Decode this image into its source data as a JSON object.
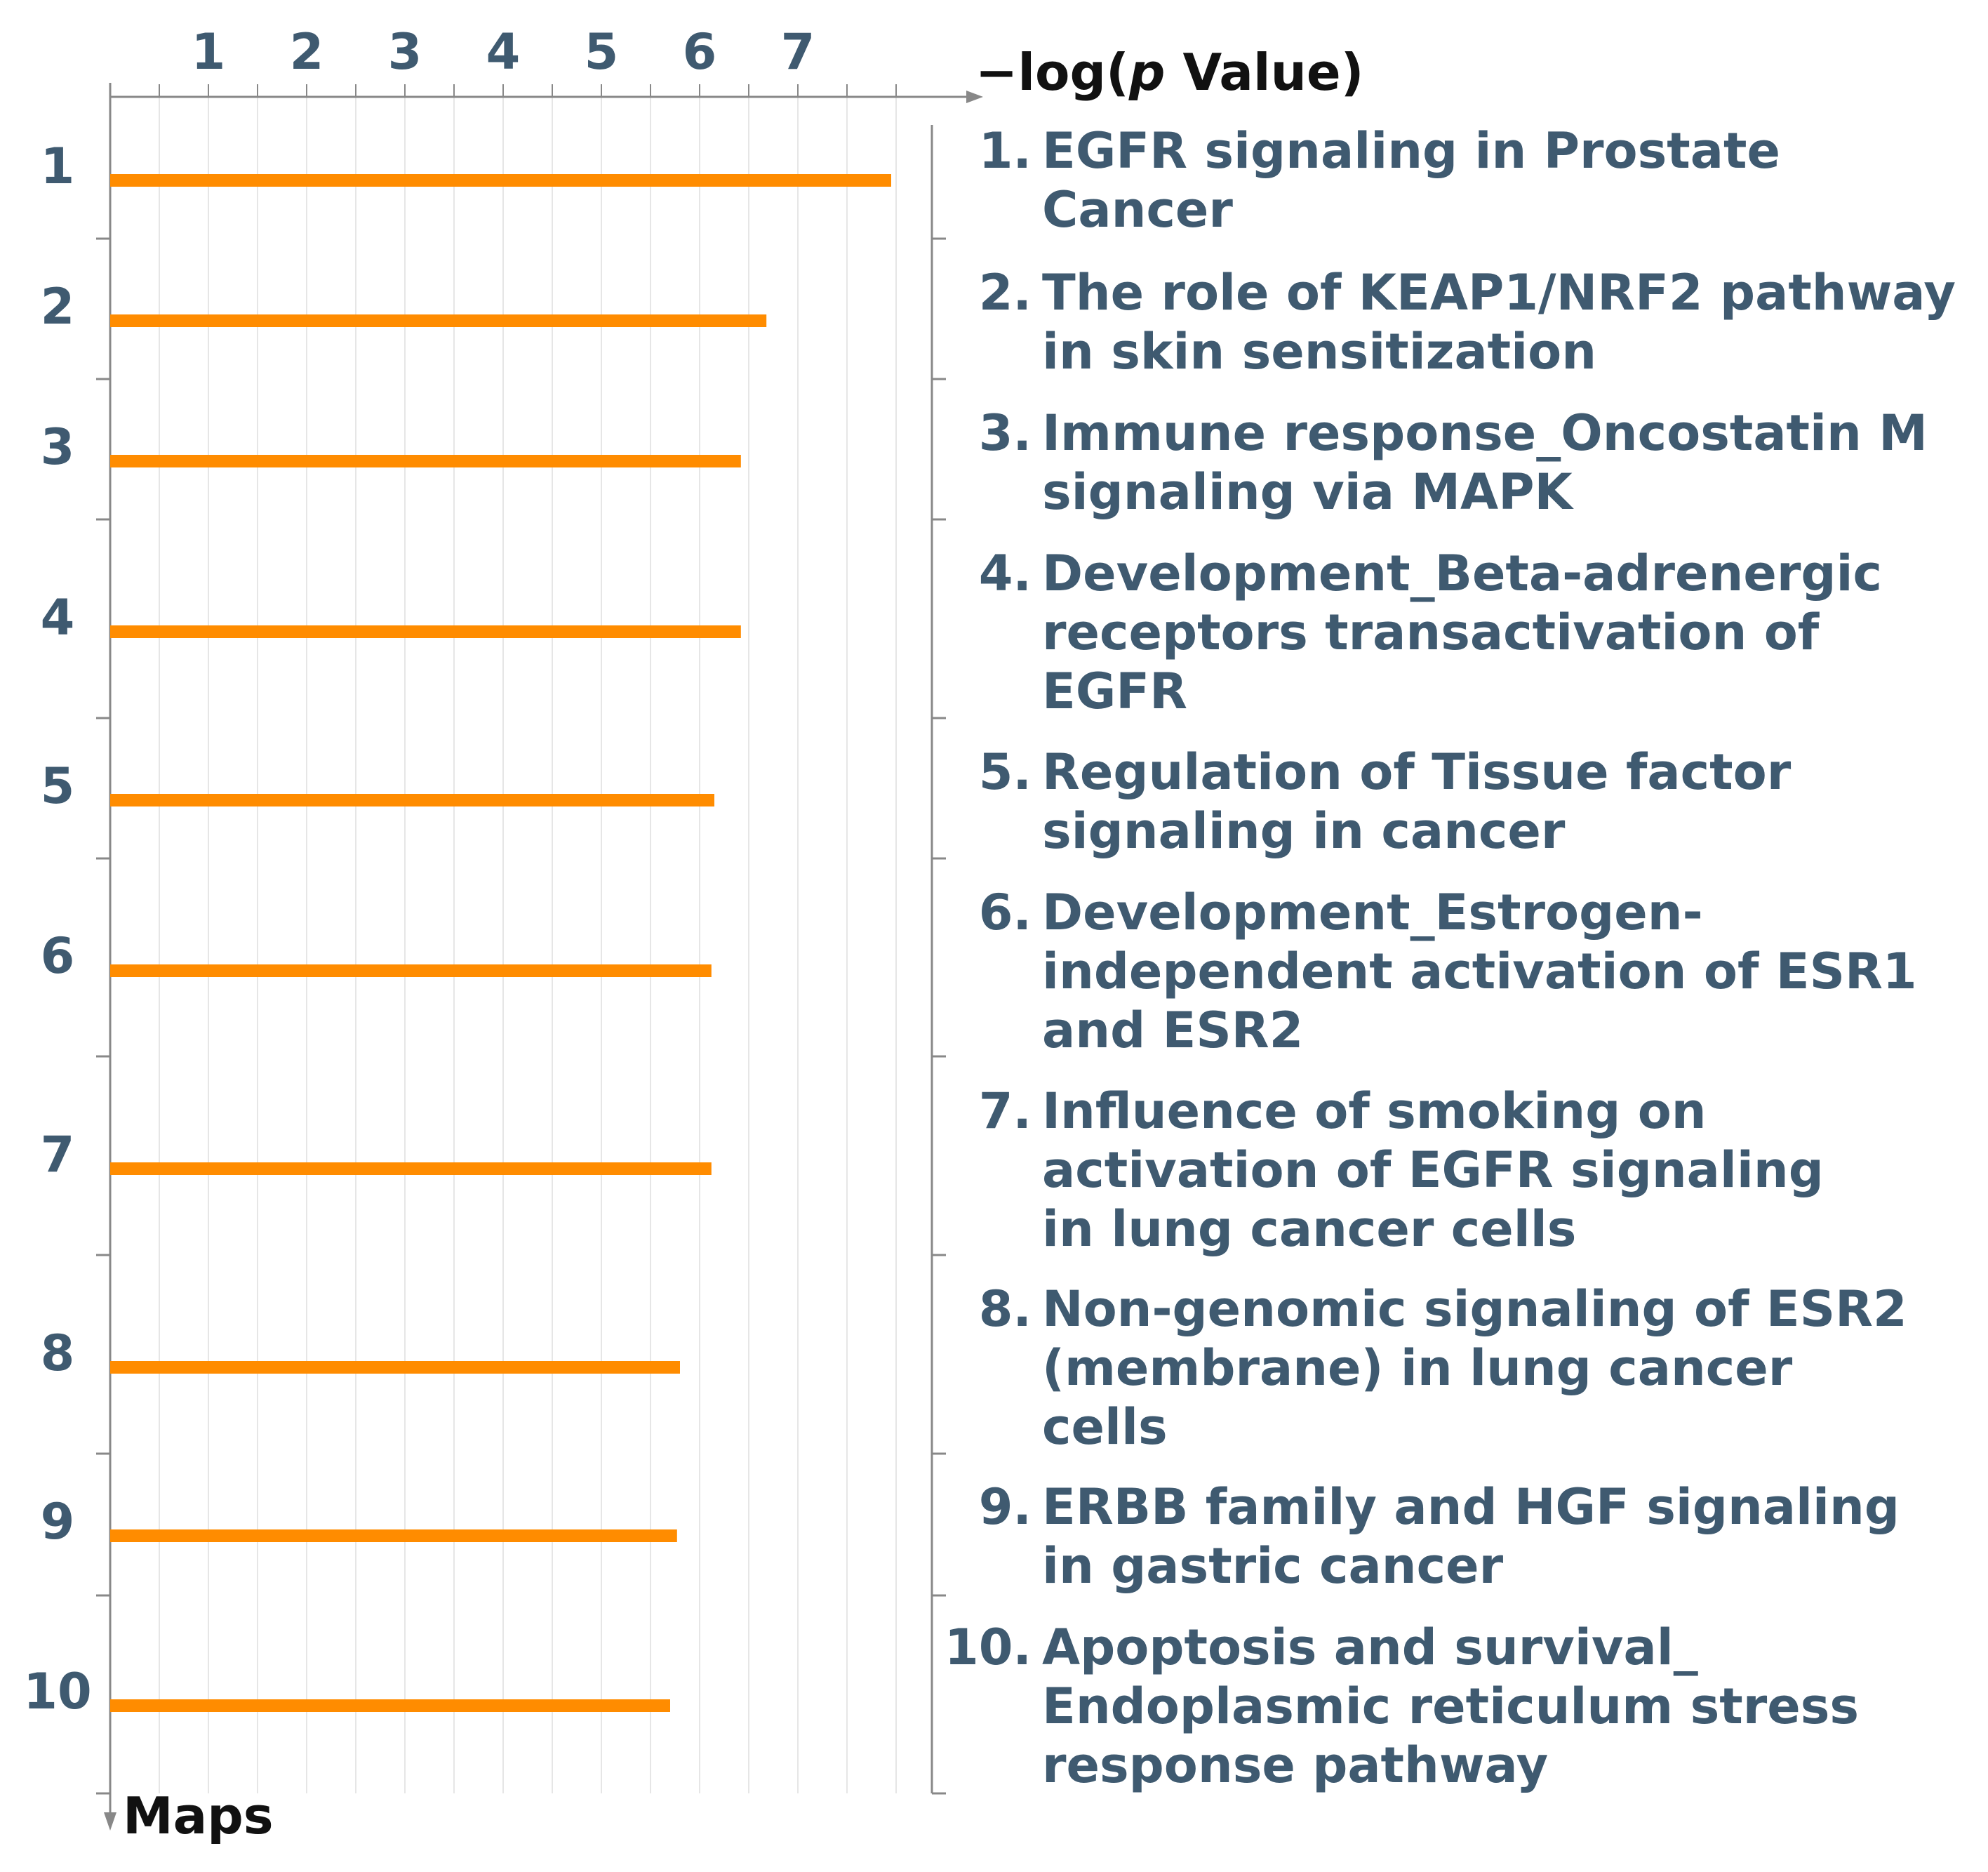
{
  "chart_data": {
    "type": "bar",
    "orientation": "horizontal",
    "x_axis_title": {
      "prefix": "−log(",
      "italic": "p",
      "suffix": " Value)"
    },
    "y_axis_title": "Maps",
    "x_ticks": [
      "1",
      "2",
      "3",
      "4",
      "5",
      "6",
      "7"
    ],
    "xlim": [
      0,
      8.3
    ],
    "grid": true,
    "bar_color": "#ff8c00",
    "text_color": "#3f5a70",
    "categories": [
      "1",
      "2",
      "3",
      "4",
      "5",
      "6",
      "7",
      "8",
      "9",
      "10"
    ],
    "values": [
      7.95,
      6.68,
      6.42,
      6.42,
      6.15,
      6.12,
      6.12,
      5.8,
      5.77,
      5.7
    ],
    "labels": [
      {
        "num": "1.",
        "lines": [
          "EGFR signaling in Prostate",
          "Cancer"
        ]
      },
      {
        "num": "2.",
        "lines": [
          "The role of KEAP1/NRF2 pathway",
          "in skin sensitization"
        ]
      },
      {
        "num": "3.",
        "lines": [
          "Immune response_Oncostatin M",
          "signaling via MAPK"
        ]
      },
      {
        "num": "4.",
        "lines": [
          "Development_Beta-adrenergic",
          "receptors transactivation of",
          "EGFR"
        ]
      },
      {
        "num": "5.",
        "lines": [
          "Regulation of Tissue factor",
          "signaling in cancer"
        ]
      },
      {
        "num": "6.",
        "lines": [
          "Development_Estrogen-",
          "independent activation of ESR1",
          "and ESR2"
        ]
      },
      {
        "num": "7.",
        "lines": [
          "Influence of smoking on",
          "activation of EGFR signaling",
          "in lung cancer cells"
        ]
      },
      {
        "num": "8.",
        "lines": [
          "Non-genomic signaling of ESR2",
          "(membrane) in lung cancer",
          "cells"
        ]
      },
      {
        "num": "9.",
        "lines": [
          "ERBB family and HGF signaling",
          "in gastric cancer"
        ]
      },
      {
        "num": "10.",
        "lines": [
          "Apoptosis and survival_",
          "Endoplasmic reticulum stress",
          "response pathway"
        ]
      }
    ]
  }
}
